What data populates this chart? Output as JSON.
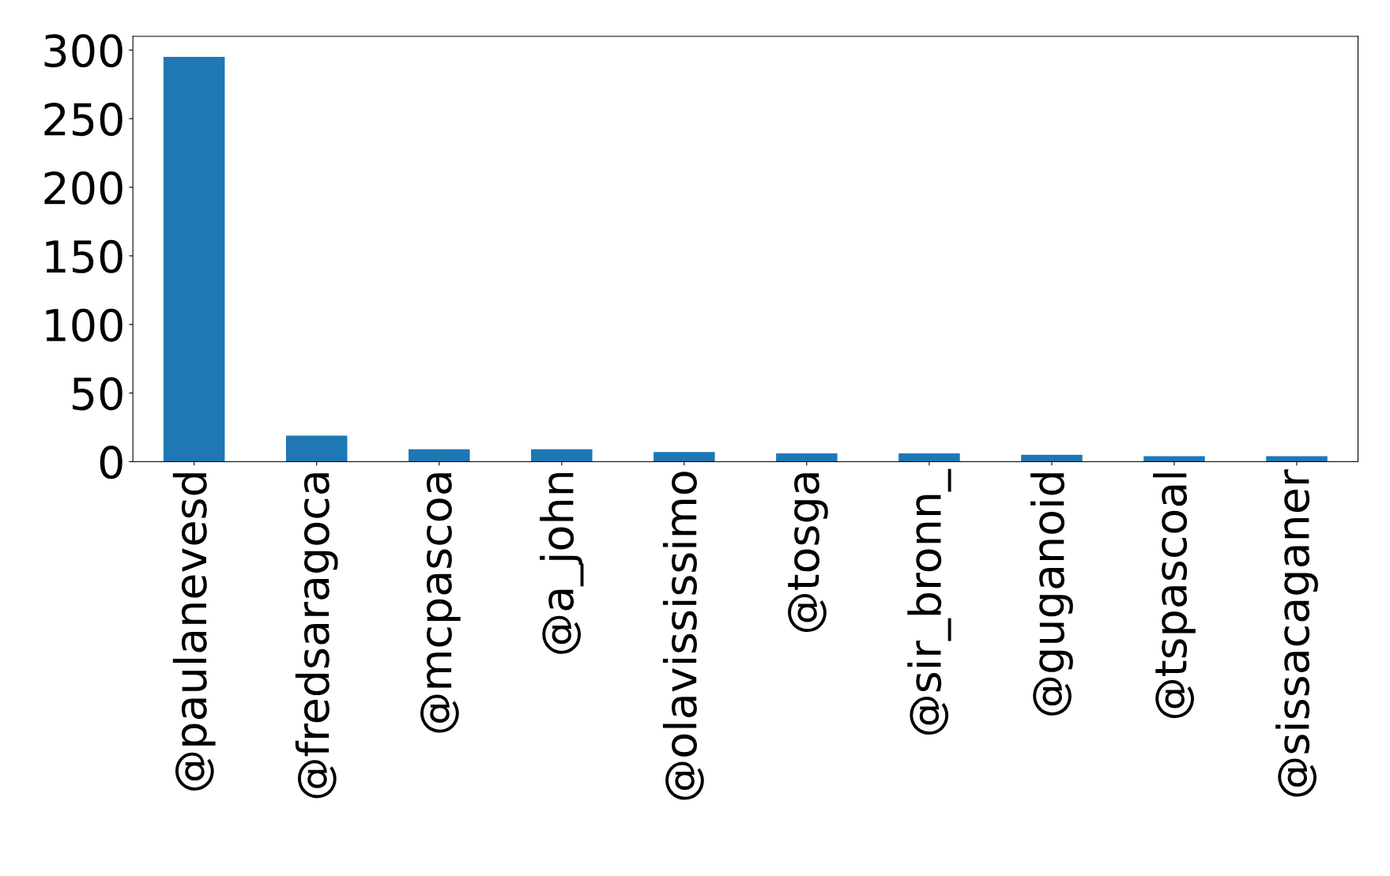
{
  "chart_data": {
    "type": "bar",
    "categories": [
      "@paulanevesd",
      "@fredsaragoca",
      "@mcpascoa",
      "@a_john",
      "@olavississimo",
      "@tosga",
      "@sir_bronn_",
      "@guganoid",
      "@tspascoal",
      "@sissacaganer"
    ],
    "values": [
      295,
      19,
      9,
      9,
      7,
      6,
      6,
      5,
      4,
      4
    ],
    "color": "#1f77b4",
    "ylim": [
      0,
      310
    ],
    "yticks": [
      0,
      50,
      100,
      150,
      200,
      250,
      300
    ],
    "grid": false,
    "legend": false
  }
}
